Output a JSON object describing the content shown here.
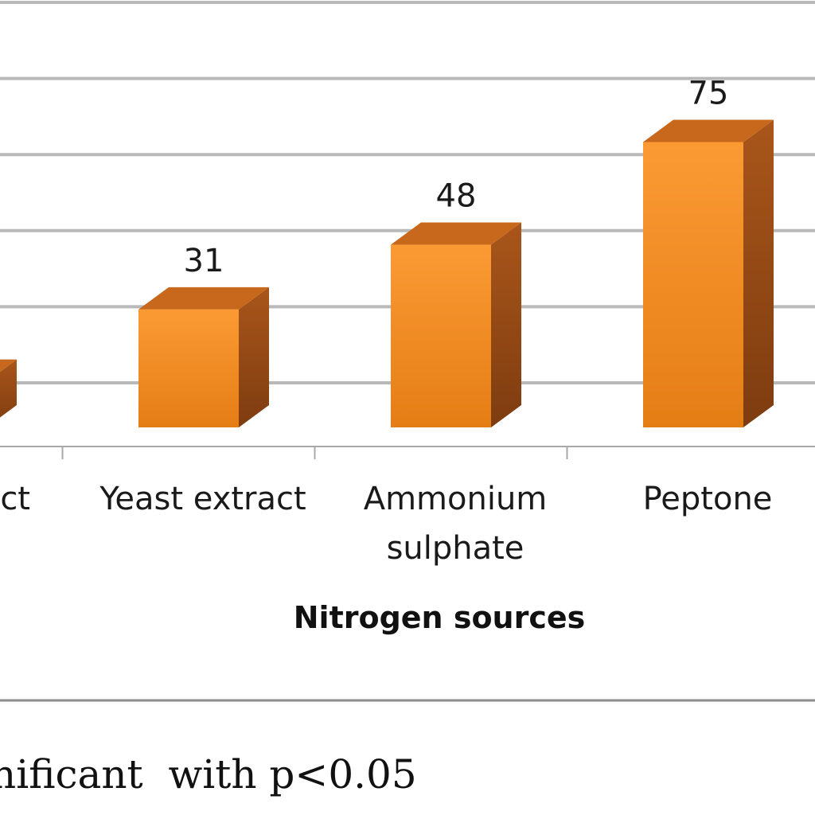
{
  "chart_data": {
    "type": "bar",
    "categories": [
      "ct",
      "Yeast extract",
      "Ammonium sulphate",
      "Peptone",
      ""
    ],
    "values": [
      null,
      31,
      48,
      75,
      null
    ],
    "partial_bar_visible": [
      true,
      false,
      false,
      false,
      false
    ],
    "category_label_lines": [
      [
        "ct"
      ],
      [
        "Yeast extract"
      ],
      [
        "Ammonium",
        "sulphate"
      ],
      [
        "Peptone"
      ],
      []
    ],
    "data_labels": [
      "",
      "31",
      "48",
      "75",
      ""
    ],
    "title": "",
    "xlabel": "Nitrogen sources",
    "ylabel": "",
    "ylim": [
      0,
      100
    ],
    "grid": true,
    "legend": "none",
    "bar_color": "#f0871e"
  },
  "footnote": "nificant  with p<0.05"
}
